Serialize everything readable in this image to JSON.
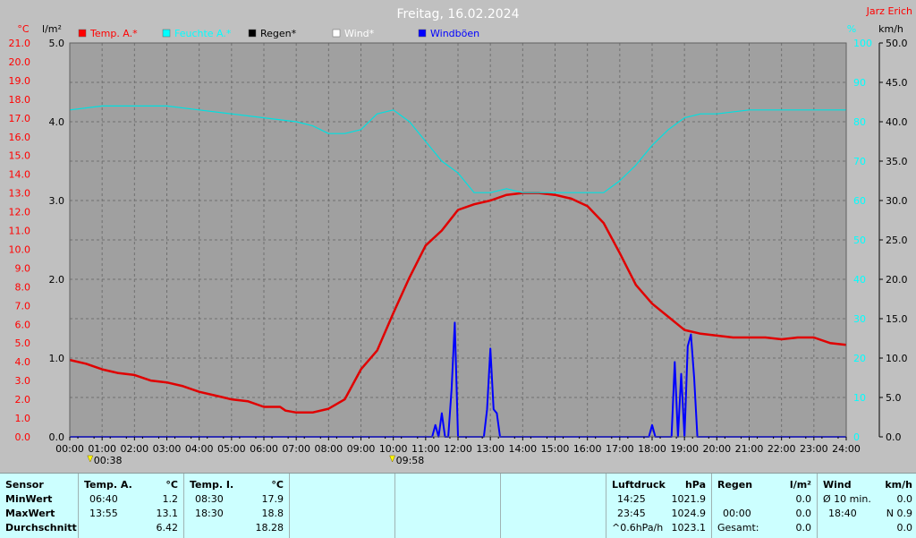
{
  "chart_data": {
    "type": "line",
    "title": "Freitag, 16.02.2024",
    "credit": "Jarz Erich",
    "axes": {
      "temp": {
        "unit": "°C",
        "min": 0.0,
        "max": 21.0,
        "ticks": [
          "0.0",
          "1.0",
          "2.0",
          "3.0",
          "4.0",
          "5.0",
          "6.0",
          "7.0",
          "8.0",
          "9.0",
          "10.0",
          "11.0",
          "12.0",
          "13.0",
          "14.0",
          "15.0",
          "16.0",
          "17.0",
          "18.0",
          "19.0",
          "20.0",
          "21.0"
        ]
      },
      "rain": {
        "unit": "l/m²",
        "min": 0.0,
        "max": 5.0,
        "ticks": [
          "0.0",
          "1.0",
          "2.0",
          "3.0",
          "4.0",
          "5.0"
        ]
      },
      "humidity": {
        "unit": "%",
        "min": 0,
        "max": 100,
        "ticks": [
          "0",
          "10",
          "20",
          "30",
          "40",
          "50",
          "60",
          "70",
          "80",
          "90",
          "100"
        ]
      },
      "wind": {
        "unit": "km/h",
        "min": 0.0,
        "max": 50.0,
        "ticks": [
          "0.0",
          "5.0",
          "10.0",
          "15.0",
          "20.0",
          "25.0",
          "30.0",
          "35.0",
          "40.0",
          "45.0",
          "50.0"
        ]
      }
    },
    "x_ticks": [
      "00:00",
      "01:00",
      "02:00",
      "03:00",
      "04:00",
      "05:00",
      "06:00",
      "07:00",
      "08:00",
      "09:00",
      "10:00",
      "11:00",
      "12:00",
      "13:00",
      "14:00",
      "15:00",
      "16:00",
      "17:00",
      "18:00",
      "19:00",
      "20:00",
      "21:00",
      "22:00",
      "23:00",
      "24:00"
    ],
    "sun_markers": [
      {
        "label": "00:38",
        "hour": 0.63
      },
      {
        "label": "09:58",
        "hour": 9.97
      }
    ],
    "legend": [
      {
        "name": "Temp. A.*",
        "color": "#ff0000"
      },
      {
        "name": "Feuchte A.*",
        "color": "#00ffff"
      },
      {
        "name": "Regen*",
        "color": "#000000"
      },
      {
        "name": "Wind*",
        "color": "#ffffff"
      },
      {
        "name": "Windböen",
        "color": "#0000ff"
      }
    ],
    "series": [
      {
        "name": "Temp. A.*",
        "axis": "temp",
        "color": "#e00000",
        "x": [
          0,
          0.5,
          1,
          1.5,
          2,
          2.5,
          3,
          3.5,
          4,
          4.5,
          5,
          5.5,
          6,
          6.5,
          6.67,
          7,
          7.5,
          8,
          8.5,
          9,
          9.5,
          10,
          10.5,
          11,
          11.5,
          12,
          12.5,
          13,
          13.5,
          14,
          14.5,
          15,
          15.5,
          16,
          16.5,
          17,
          17.5,
          18,
          18.5,
          19,
          19.5,
          20,
          20.5,
          21,
          21.5,
          22,
          22.5,
          23,
          23.5,
          24
        ],
        "y": [
          4.1,
          3.9,
          3.6,
          3.4,
          3.3,
          3.0,
          2.9,
          2.7,
          2.4,
          2.2,
          2.0,
          1.9,
          1.6,
          1.6,
          1.4,
          1.3,
          1.3,
          1.5,
          2.0,
          3.6,
          4.6,
          6.6,
          8.5,
          10.2,
          11.0,
          12.1,
          12.4,
          12.6,
          12.9,
          13.0,
          13.0,
          12.9,
          12.7,
          12.3,
          11.4,
          9.8,
          8.1,
          7.1,
          6.4,
          5.7,
          5.5,
          5.4,
          5.3,
          5.3,
          5.3,
          5.2,
          5.3,
          5.3,
          5.0,
          4.9
        ]
      },
      {
        "name": "Feuchte A.*",
        "axis": "humidity",
        "color": "#00e0e0",
        "x": [
          0,
          1,
          2,
          3,
          4,
          5,
          6,
          7,
          7.5,
          8,
          8.5,
          9,
          9.5,
          10,
          10.5,
          11,
          11.5,
          12,
          12.5,
          13,
          13.5,
          14,
          14.5,
          15,
          15.5,
          16,
          16.5,
          17,
          17.5,
          18,
          18.5,
          19,
          19.5,
          20,
          21,
          22,
          23,
          24
        ],
        "y": [
          83,
          84,
          84,
          84,
          83,
          82,
          81,
          80,
          79,
          77,
          77,
          78,
          82,
          83,
          80,
          75,
          70,
          67,
          62,
          62,
          63,
          62,
          62,
          62,
          62,
          62,
          62,
          65,
          69,
          74,
          78,
          81,
          82,
          82,
          83,
          83,
          83,
          83
        ]
      },
      {
        "name": "Windböen",
        "axis": "wind",
        "color": "#0000ff",
        "x": [
          0,
          11.2,
          11.3,
          11.4,
          11.5,
          11.6,
          11.7,
          11.8,
          11.9,
          12.0,
          12.1,
          12.2,
          12.8,
          12.9,
          13.0,
          13.1,
          13.2,
          13.3,
          13.4,
          17.9,
          18.0,
          18.1,
          18.6,
          18.7,
          18.8,
          18.9,
          19.0,
          19.1,
          19.2,
          19.3,
          19.4,
          24
        ],
        "y": [
          0,
          0,
          1.5,
          0,
          3.0,
          0,
          0,
          6.0,
          14.5,
          0,
          0,
          0,
          0,
          3.5,
          11.2,
          3.5,
          3.0,
          0,
          0,
          0,
          1.5,
          0,
          0,
          9.5,
          0,
          8.0,
          0,
          11.5,
          13.0,
          7.5,
          0,
          0
        ]
      }
    ]
  },
  "stats": {
    "sensor": {
      "label": "Sensor",
      "rows": [
        "MinWert",
        "MaxWert",
        "Durchschnitt"
      ]
    },
    "temp_a": {
      "label": "Temp. A.",
      "unit": "°C",
      "min_time": "06:40",
      "min_val": "1.2",
      "max_time": "13:55",
      "max_val": "13.1",
      "avg": "6.42"
    },
    "temp_i": {
      "label": "Temp. I.",
      "unit": "°C",
      "min_time": "08:30",
      "min_val": "17.9",
      "max_time": "18:30",
      "max_val": "18.8",
      "avg": "18.28"
    },
    "luftdruck": {
      "label": "Luftdruck",
      "unit": "hPa",
      "min_time": "14:25",
      "min_val": "1021.9",
      "max_time": "23:45",
      "max_val": "1024.9",
      "trend": "^0.6hPa/h",
      "avg": "1023.1"
    },
    "regen": {
      "label": "Regen",
      "unit": "l/m²",
      "min_val": "0.0",
      "max_time": "00:00",
      "max_val": "0.0",
      "total_label": "Gesamt:",
      "total": "0.0"
    },
    "wind": {
      "label": "Wind",
      "unit": "km/h",
      "min_label": "Ø 10 min.",
      "min_val": "0.0",
      "max_time": "18:40",
      "max_val": "N 0.9",
      "avg": "0.0"
    }
  }
}
